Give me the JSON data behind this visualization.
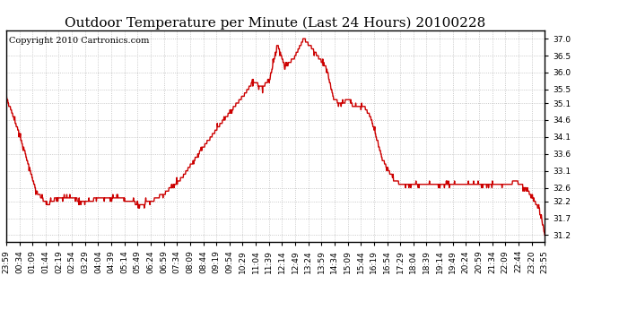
{
  "title": "Outdoor Temperature per Minute (Last 24 Hours) 20100228",
  "copyright_text": "Copyright 2010 Cartronics.com",
  "line_color": "#cc0000",
  "background_color": "#ffffff",
  "plot_bg_color": "#ffffff",
  "grid_color": "#bbbbbb",
  "yticks": [
    31.2,
    31.7,
    32.2,
    32.6,
    33.1,
    33.6,
    34.1,
    34.6,
    35.1,
    35.5,
    36.0,
    36.5,
    37.0
  ],
  "ylim": [
    31.0,
    37.25
  ],
  "xtick_labels": [
    "23:59",
    "00:34",
    "01:09",
    "01:44",
    "02:19",
    "02:54",
    "03:29",
    "04:04",
    "04:39",
    "05:14",
    "05:49",
    "06:24",
    "06:59",
    "07:34",
    "08:09",
    "08:44",
    "09:19",
    "09:54",
    "10:29",
    "11:04",
    "11:39",
    "12:14",
    "12:49",
    "13:24",
    "13:59",
    "14:34",
    "15:09",
    "15:44",
    "16:19",
    "16:54",
    "17:29",
    "18:04",
    "18:39",
    "19:14",
    "19:49",
    "20:24",
    "20:59",
    "21:34",
    "22:09",
    "22:44",
    "23:20",
    "23:55"
  ],
  "line_width": 1.0,
  "title_fontsize": 11,
  "tick_fontsize": 6.5,
  "copyright_fontsize": 7,
  "keypoints_t": [
    0,
    35,
    80,
    110,
    135,
    170,
    210,
    245,
    285,
    360,
    395,
    425,
    470,
    520,
    560,
    610,
    640,
    660,
    685,
    705,
    725,
    745,
    770,
    795,
    815,
    835,
    855,
    875,
    895,
    915,
    930,
    955,
    975,
    1005,
    1035,
    1055,
    1085,
    1145,
    1245,
    1345,
    1360,
    1375,
    1395,
    1425,
    1439
  ],
  "keypoints_v": [
    35.3,
    34.2,
    32.5,
    32.1,
    32.3,
    32.35,
    32.15,
    32.3,
    32.35,
    32.1,
    32.25,
    32.45,
    32.9,
    33.7,
    34.3,
    35.0,
    35.4,
    35.75,
    35.55,
    35.85,
    36.85,
    36.15,
    36.45,
    37.0,
    36.75,
    36.45,
    36.15,
    35.25,
    35.05,
    35.25,
    34.95,
    35.05,
    34.65,
    33.45,
    32.85,
    32.7,
    32.7,
    32.7,
    32.7,
    32.7,
    32.8,
    32.7,
    32.5,
    31.95,
    31.2
  ]
}
